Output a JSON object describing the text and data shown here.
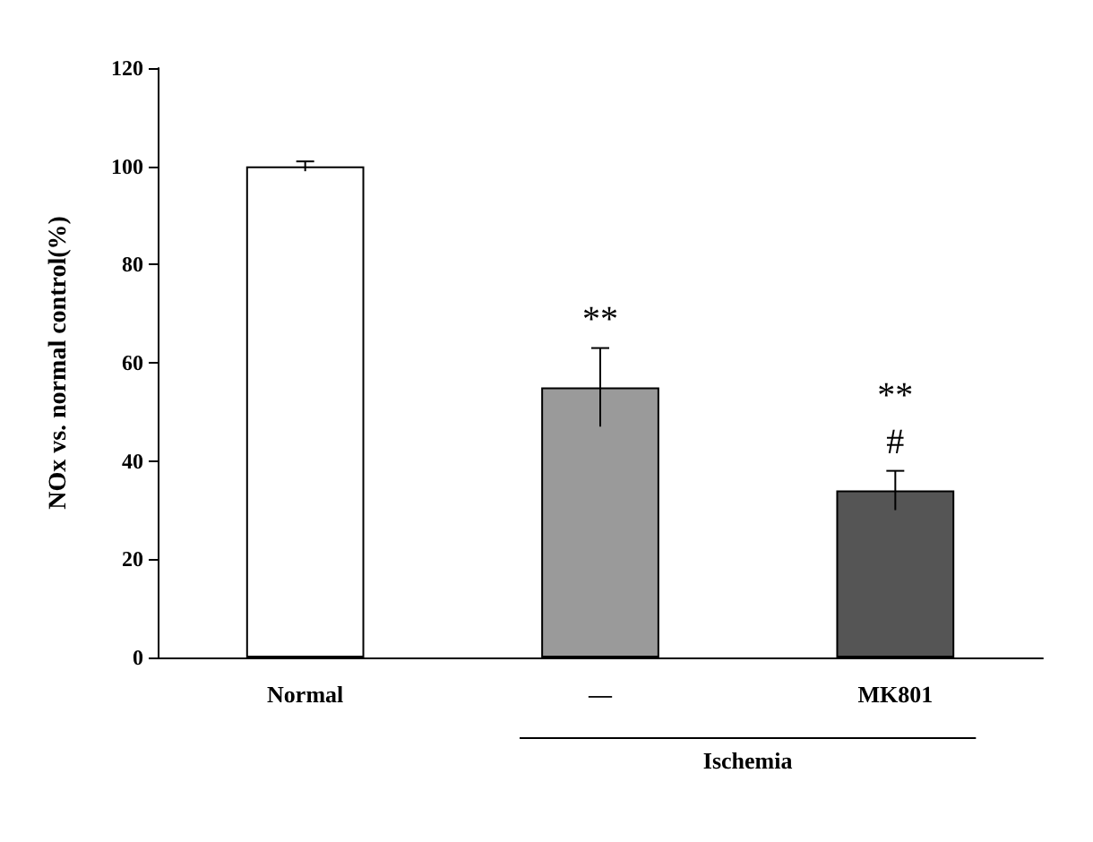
{
  "chart_data": {
    "type": "bar",
    "ylabel": "NOx vs. normal control(%)",
    "categories": [
      "Normal",
      "—",
      "MK801"
    ],
    "values": [
      100,
      55,
      34
    ],
    "colors": [
      "#ffffff",
      "#9a9a9a",
      "#555555"
    ],
    "errors": [
      1,
      8,
      4
    ],
    "ylim": [
      0,
      120
    ],
    "yticks": [
      0,
      20,
      40,
      60,
      80,
      100,
      120
    ],
    "grid": false,
    "annotations": [
      {
        "text": "**",
        "x": "—",
        "y": 63
      },
      {
        "text": "**",
        "x": "MK801",
        "y": 38
      },
      {
        "text": "#",
        "x": "MK801",
        "y": 38
      },
      "Ischemia"
    ]
  }
}
